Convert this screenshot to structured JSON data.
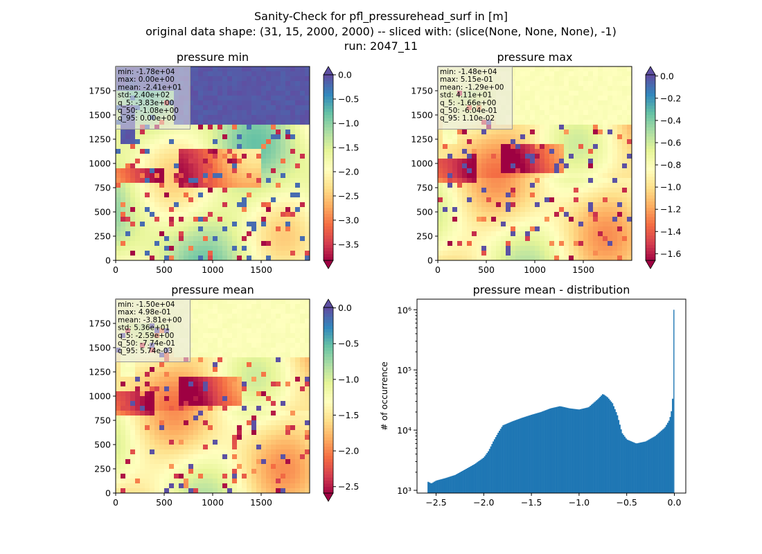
{
  "figure": {
    "title_lines": [
      "Sanity-Check for pfl_pressurehead_surf in [m]",
      "original data shape: (31, 15, 2000, 2000) -- sliced with: (slice(None, None, None), -1)",
      "run: 2047_11"
    ]
  },
  "colormap": {
    "name": "Spectral",
    "stops": [
      "#9e0142",
      "#d53e4f",
      "#f46d43",
      "#fdae61",
      "#fee08b",
      "#ffffbf",
      "#e6f598",
      "#abdda4",
      "#66c2a5",
      "#3288bd",
      "#5e4fa2"
    ]
  },
  "maps": [
    {
      "id": "min",
      "title": "pressure min",
      "x_ticks": [
        "0",
        "500",
        "1000",
        "1500"
      ],
      "y_ticks": [
        "0",
        "250",
        "500",
        "750",
        "1000",
        "1250",
        "1500",
        "1750"
      ],
      "stats": [
        "min: -1.78e+04",
        "max: 0.00e+00",
        "mean: -2.41e+01",
        "std: 2.40e+02",
        "q_5: -3.83e+00",
        "q_50: -1.08e+00",
        "q_95: 0.00e+00"
      ],
      "colorbar": {
        "vmin": -3.83,
        "vmax": 0.0,
        "extend": "both",
        "ticks": [
          0.0,
          -0.5,
          -1.0,
          -1.5,
          -2.0,
          -2.5,
          -3.0,
          -3.5
        ],
        "tick_labels": [
          "0.0",
          "−0.5",
          "−1.0",
          "−1.5",
          "−2.0",
          "−2.5",
          "−3.0",
          "−3.5"
        ]
      }
    },
    {
      "id": "max",
      "title": "pressure max",
      "x_ticks": [
        "0",
        "500",
        "1000",
        "1500"
      ],
      "y_ticks": [
        "0",
        "250",
        "500",
        "750",
        "1000",
        "1250",
        "1500",
        "1750"
      ],
      "stats": [
        "min: -1.48e+04",
        "max: 5.15e-01",
        "mean: -1.29e+00",
        "std: 4.11e+01",
        "q_5: -1.66e+00",
        "q_50: -6.04e-01",
        "q_95: 1.10e-02"
      ],
      "colorbar": {
        "vmin": -1.66,
        "vmax": 0.011,
        "extend": "both",
        "ticks": [
          0.0,
          -0.2,
          -0.4,
          -0.6,
          -0.8,
          -1.0,
          -1.2,
          -1.4,
          -1.6
        ],
        "tick_labels": [
          "0.0",
          "−0.2",
          "−0.4",
          "−0.6",
          "−0.8",
          "−1.0",
          "−1.2",
          "−1.4",
          "−1.6"
        ]
      }
    },
    {
      "id": "mean",
      "title": "pressure mean",
      "x_ticks": [
        "0",
        "500",
        "1000",
        "1500"
      ],
      "y_ticks": [
        "0",
        "250",
        "500",
        "750",
        "1000",
        "1250",
        "1500",
        "1750"
      ],
      "stats": [
        "min: -1.50e+04",
        "max: 4.98e-01",
        "mean: -3.81e+00",
        "std: 5.36e+01",
        "q_5: -2.59e+00",
        "q_50: -7.74e-01",
        "q_95: 5.74e-03"
      ],
      "colorbar": {
        "vmin": -2.59,
        "vmax": 0.006,
        "extend": "both",
        "ticks": [
          0.0,
          -0.5,
          -1.0,
          -1.5,
          -2.0,
          -2.5
        ],
        "tick_labels": [
          "0.0",
          "−0.5",
          "−1.0",
          "−1.5",
          "−2.0",
          "−2.5"
        ]
      }
    }
  ],
  "chart_data": {
    "type": "bar",
    "title": "pressure mean - distribution",
    "xlabel": "",
    "ylabel": "# of occurrence",
    "yscale": "log",
    "xlim": [
      -2.7,
      0.12
    ],
    "ylim": [
      900,
      1500000
    ],
    "x_ticks": [
      -2.5,
      -2.0,
      -1.5,
      -1.0,
      -0.5,
      0.0
    ],
    "x_tick_labels": [
      "−2.5",
      "−2.0",
      "−1.5",
      "−1.0",
      "−0.5",
      "0.0"
    ],
    "y_ticks": [
      1000,
      10000,
      100000,
      1000000
    ],
    "y_tick_labels": [
      "10³",
      "10⁴",
      "10⁵",
      "10⁶"
    ],
    "bar_color": "#1f77b4",
    "bins": [
      {
        "x": -2.59,
        "y": 1400
      },
      {
        "x": -2.55,
        "y": 1300
      },
      {
        "x": -2.5,
        "y": 1450
      },
      {
        "x": -2.4,
        "y": 1600
      },
      {
        "x": -2.3,
        "y": 1800
      },
      {
        "x": -2.2,
        "y": 2200
      },
      {
        "x": -2.1,
        "y": 2700
      },
      {
        "x": -2.0,
        "y": 3500
      },
      {
        "x": -1.95,
        "y": 4500
      },
      {
        "x": -1.9,
        "y": 6500
      },
      {
        "x": -1.85,
        "y": 9000
      },
      {
        "x": -1.8,
        "y": 12000
      },
      {
        "x": -1.7,
        "y": 14000
      },
      {
        "x": -1.6,
        "y": 16000
      },
      {
        "x": -1.5,
        "y": 18000
      },
      {
        "x": -1.4,
        "y": 20000
      },
      {
        "x": -1.3,
        "y": 23000
      },
      {
        "x": -1.2,
        "y": 25000
      },
      {
        "x": -1.1,
        "y": 23000
      },
      {
        "x": -1.0,
        "y": 22000
      },
      {
        "x": -0.9,
        "y": 24000
      },
      {
        "x": -0.8,
        "y": 33000
      },
      {
        "x": -0.75,
        "y": 40000
      },
      {
        "x": -0.7,
        "y": 35000
      },
      {
        "x": -0.65,
        "y": 28000
      },
      {
        "x": -0.6,
        "y": 18000
      },
      {
        "x": -0.55,
        "y": 9000
      },
      {
        "x": -0.5,
        "y": 7000
      },
      {
        "x": -0.4,
        "y": 6000
      },
      {
        "x": -0.3,
        "y": 6500
      },
      {
        "x": -0.2,
        "y": 8000
      },
      {
        "x": -0.1,
        "y": 11000
      },
      {
        "x": -0.05,
        "y": 15000
      },
      {
        "x": -0.02,
        "y": 25000
      },
      {
        "x": 0.0,
        "y": 1000000
      }
    ]
  }
}
